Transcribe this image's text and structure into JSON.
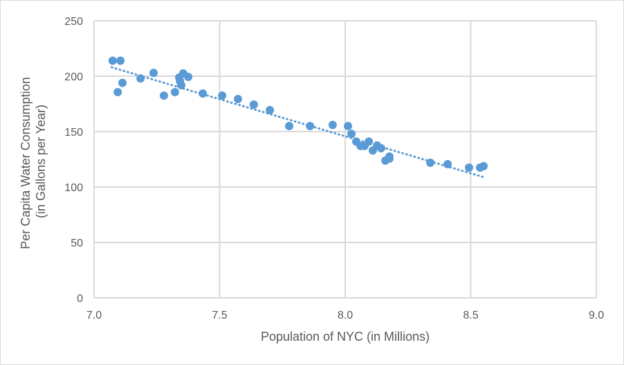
{
  "chart_data": {
    "type": "scatter",
    "title": "",
    "xlabel": "Population of NYC (in Millions)",
    "ylabel": [
      "Per Capita Water Consumption",
      "(in Gallons per Year)"
    ],
    "xlim": [
      7.0,
      9.0
    ],
    "ylim": [
      0,
      250
    ],
    "xticks": [
      "7.0",
      "7.5",
      "8.0",
      "8.5",
      "9.0"
    ],
    "yticks": [
      "0",
      "50",
      "100",
      "150",
      "200",
      "250"
    ],
    "grid": true,
    "marker_color": "#5B9BD5",
    "trendline": {
      "type": "linear",
      "style": "dotted",
      "from": [
        7.07,
        208
      ],
      "to": [
        8.55,
        109
      ]
    },
    "points": [
      [
        7.074,
        214
      ],
      [
        7.105,
        214
      ],
      [
        7.094,
        185.6
      ],
      [
        7.113,
        194
      ],
      [
        7.185,
        198
      ],
      [
        7.237,
        203
      ],
      [
        7.278,
        182.5
      ],
      [
        7.322,
        185.6
      ],
      [
        7.342,
        195.6
      ],
      [
        7.339,
        198.8
      ],
      [
        7.355,
        202.5
      ],
      [
        7.347,
        191.9
      ],
      [
        7.375,
        199.4
      ],
      [
        7.433,
        184.4
      ],
      [
        7.51,
        182.5
      ],
      [
        7.573,
        179.4
      ],
      [
        7.636,
        174.4
      ],
      [
        7.7,
        169.4
      ],
      [
        7.777,
        155
      ],
      [
        7.86,
        155
      ],
      [
        7.95,
        156
      ],
      [
        8.011,
        155
      ],
      [
        8.025,
        148
      ],
      [
        8.044,
        141
      ],
      [
        8.061,
        137
      ],
      [
        8.077,
        137
      ],
      [
        8.094,
        141
      ],
      [
        8.11,
        133
      ],
      [
        8.127,
        137.5
      ],
      [
        8.143,
        135
      ],
      [
        8.16,
        123.8
      ],
      [
        8.176,
        125.6
      ],
      [
        8.176,
        127.5
      ],
      [
        8.339,
        121.9
      ],
      [
        8.408,
        120.6
      ],
      [
        8.493,
        117.5
      ],
      [
        8.537,
        117.5
      ],
      [
        8.551,
        118.8
      ]
    ]
  }
}
